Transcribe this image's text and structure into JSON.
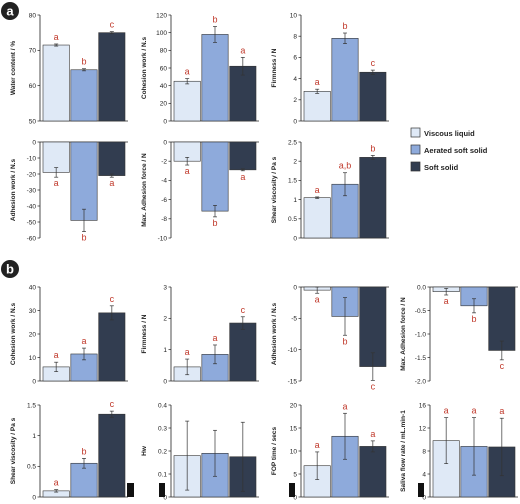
{
  "panel_labels": [
    "a",
    "b"
  ],
  "legend": [
    {
      "label": "Viscous liquid",
      "color": "#dfe9f6"
    },
    {
      "label": "Aerated soft solid",
      "color": "#8eaadb"
    },
    {
      "label": "Soft solid",
      "color": "#323d50"
    }
  ],
  "colors": {
    "bar_edge": "#333333",
    "sig_letter": "#c0392b"
  },
  "chart_data": [
    {
      "id": "a1",
      "type": "bar",
      "ylabel": "Water content / %",
      "ylim": [
        50,
        80
      ],
      "yticks": [
        50,
        60,
        70,
        80
      ],
      "categories": [
        "Viscous liquid",
        "Aerated soft solid",
        "Soft solid"
      ],
      "values": [
        71.5,
        64.5,
        75
      ],
      "errors": [
        0.3,
        0.3,
        0.3
      ],
      "letters": [
        "a",
        "b",
        "c"
      ]
    },
    {
      "id": "a2",
      "type": "bar",
      "ylabel": "Cohesion work / N.s",
      "ylim": [
        0,
        120
      ],
      "yticks": [
        0,
        20,
        40,
        60,
        80,
        100,
        120
      ],
      "categories": [
        "Viscous liquid",
        "Aerated soft solid",
        "Soft solid"
      ],
      "values": [
        45,
        98,
        62
      ],
      "errors": [
        3,
        9,
        10
      ],
      "letters": [
        "a",
        "b",
        "a"
      ]
    },
    {
      "id": "a3",
      "type": "bar",
      "ylabel": "Firmness / N",
      "ylim": [
        0,
        10
      ],
      "yticks": [
        0,
        2,
        4,
        6,
        8,
        10
      ],
      "categories": [
        "Viscous liquid",
        "Aerated soft solid",
        "Soft solid"
      ],
      "values": [
        2.8,
        7.8,
        4.6
      ],
      "errors": [
        0.2,
        0.5,
        0.2
      ],
      "letters": [
        "a",
        "b",
        "c"
      ]
    },
    {
      "id": "a4",
      "type": "bar",
      "ylabel": "Adhesion work / N.s",
      "ylim": [
        -60,
        0
      ],
      "yticks": [
        0,
        -10,
        -20,
        -30,
        -40,
        -50,
        -60
      ],
      "categories": [
        "Viscous liquid",
        "Aerated soft solid",
        "Soft solid"
      ],
      "values": [
        -19,
        -49,
        -21
      ],
      "errors": [
        3,
        7,
        1
      ],
      "letters": [
        "a",
        "b",
        "a"
      ]
    },
    {
      "id": "a5",
      "type": "bar",
      "ylabel": "Max. Adhesion force / N",
      "ylim": [
        -10,
        0
      ],
      "yticks": [
        0,
        -2,
        -4,
        -6,
        -8,
        -10
      ],
      "categories": [
        "Viscous liquid",
        "Aerated soft solid",
        "Soft solid"
      ],
      "values": [
        -2,
        -7.2,
        -2.9
      ],
      "errors": [
        0.4,
        0.6,
        0.1
      ],
      "letters": [
        "a",
        "b",
        "a"
      ]
    },
    {
      "id": "a6",
      "type": "bar",
      "ylabel": "Shear viscosity / Pa s",
      "ylim": [
        0,
        2.5
      ],
      "yticks": [
        0,
        0.5,
        1,
        1.5,
        2,
        2.5
      ],
      "categories": [
        "Viscous liquid",
        "Aerated soft solid",
        "Soft solid"
      ],
      "values": [
        1.05,
        1.4,
        2.1
      ],
      "errors": [
        0.02,
        0.3,
        0.05
      ],
      "letters": [
        "a",
        "a,b",
        "b"
      ]
    },
    {
      "id": "b1",
      "type": "bar",
      "ylabel": "Cohesion work / N.s",
      "ylim": [
        0,
        40
      ],
      "yticks": [
        0,
        10,
        20,
        30,
        40
      ],
      "categories": [
        "Viscous liquid",
        "Aerated soft solid",
        "Soft solid"
      ],
      "values": [
        6,
        11.5,
        29
      ],
      "errors": [
        2,
        2.5,
        3
      ],
      "letters": [
        "a",
        "a",
        "c"
      ]
    },
    {
      "id": "b2",
      "type": "bar",
      "ylabel": "Firmness / N",
      "ylim": [
        0,
        3
      ],
      "yticks": [
        0,
        1,
        2,
        3
      ],
      "categories": [
        "Viscous liquid",
        "Aerated soft solid",
        "Soft solid"
      ],
      "values": [
        0.45,
        0.85,
        1.85
      ],
      "errors": [
        0.25,
        0.3,
        0.2
      ],
      "letters": [
        "a",
        "a",
        "c"
      ]
    },
    {
      "id": "b3",
      "type": "bar",
      "ylabel": "Adhesion work / N.s",
      "ylim": [
        -15,
        0
      ],
      "yticks": [
        0,
        -5,
        -10,
        -15
      ],
      "categories": [
        "Viscous liquid",
        "Aerated soft solid",
        "Soft solid"
      ],
      "values": [
        -0.5,
        -4.7,
        -12.7
      ],
      "errors": [
        0.5,
        3,
        2.2
      ],
      "letters": [
        "a",
        "b",
        "c"
      ]
    },
    {
      "id": "b4",
      "type": "bar",
      "ylabel": "Max. Adhesion force / N",
      "ylim": [
        -2,
        0
      ],
      "yticks": [
        0,
        -0.5,
        -1,
        -1.5,
        -2
      ],
      "yticklabels": [
        "0.0",
        "-0.5",
        "-1.0",
        "-1.5",
        "-2.0"
      ],
      "categories": [
        "Viscous liquid",
        "Aerated soft solid",
        "Soft solid"
      ],
      "values": [
        -0.1,
        -0.4,
        -1.35
      ],
      "errors": [
        0.07,
        0.15,
        0.2
      ],
      "letters": [
        "a",
        "b",
        "c"
      ]
    },
    {
      "id": "b5",
      "type": "bar",
      "ylabel": "Shear viscosity / Pa s",
      "ylim": [
        0,
        1.5
      ],
      "yticks": [
        0,
        0.5,
        1,
        1.5
      ],
      "categories": [
        "Viscous liquid",
        "Aerated soft solid",
        "Soft solid"
      ],
      "values": [
        0.1,
        0.55,
        1.35
      ],
      "errors": [
        0.02,
        0.08,
        0.05
      ],
      "letters": [
        "a",
        "b",
        "c"
      ]
    },
    {
      "id": "b6",
      "type": "bar",
      "ylabel": "Hw",
      "ylim": [
        0,
        0.4
      ],
      "yticks": [
        0,
        0.1,
        0.2,
        0.3,
        0.4
      ],
      "categories": [
        "Viscous liquid",
        "Aerated soft solid",
        "Soft solid"
      ],
      "values": [
        0.18,
        0.19,
        0.175
      ],
      "errors": [
        0.15,
        0.1,
        0.15
      ],
      "letters": [],
      "tag": true
    },
    {
      "id": "b7",
      "type": "bar",
      "ylabel": "FOP time / secs",
      "ylim": [
        0,
        20
      ],
      "yticks": [
        0,
        5,
        10,
        15,
        20
      ],
      "categories": [
        "Viscous liquid",
        "Aerated soft solid",
        "Soft solid"
      ],
      "values": [
        6.8,
        13.2,
        11
      ],
      "errors": [
        3,
        5,
        1.2
      ],
      "letters": [
        "a",
        "a",
        "a"
      ],
      "tag": true
    },
    {
      "id": "b8",
      "type": "bar",
      "ylabel": "Saliva flow rate / mL.min-1",
      "ylim": [
        0,
        16
      ],
      "yticks": [
        0,
        4,
        8,
        12,
        16
      ],
      "categories": [
        "Viscous liquid",
        "Aerated soft solid",
        "Soft solid"
      ],
      "values": [
        9.8,
        8.8,
        8.7
      ],
      "errors": [
        4,
        5,
        5
      ],
      "letters": [
        "a",
        "a",
        "a"
      ],
      "tag": true
    }
  ]
}
